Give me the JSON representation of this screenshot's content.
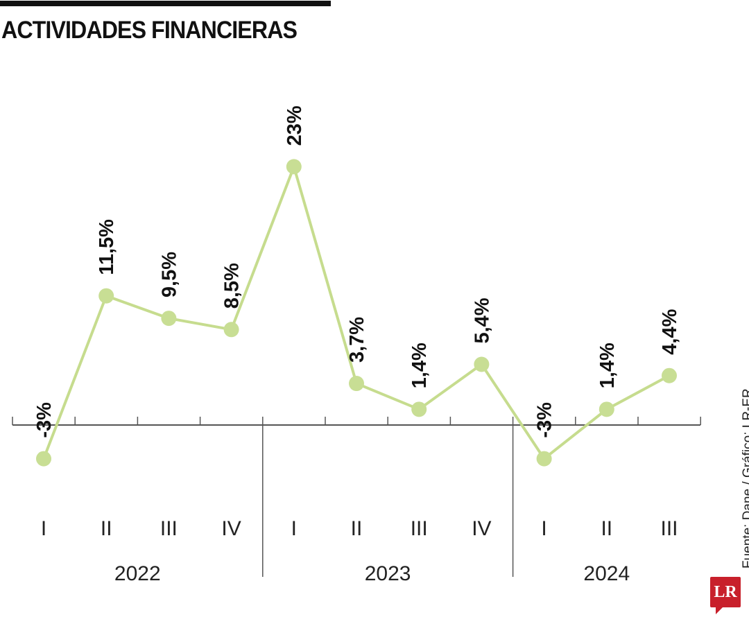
{
  "title": "ACTIVIDADES FINANCIERAS",
  "source": "Fuente: Dane / Gráfico: LR-ER",
  "logo_text": "LR",
  "chart_data": {
    "type": "line",
    "title": "ACTIVIDADES FINANCIERAS",
    "categories": [
      "I",
      "II",
      "III",
      "IV",
      "I",
      "II",
      "III",
      "IV",
      "I",
      "II",
      "III"
    ],
    "groups": [
      {
        "label": "2022",
        "count": 4
      },
      {
        "label": "2023",
        "count": 4
      },
      {
        "label": "2024",
        "count": 3
      }
    ],
    "values": [
      -3,
      11.5,
      9.5,
      8.5,
      23,
      3.7,
      1.4,
      5.4,
      -3,
      1.4,
      4.4
    ],
    "data_labels": [
      "-3%",
      "11,5%",
      "9,5%",
      "8,5%",
      "23%",
      "3,7%",
      "1,4%",
      "5,4%",
      "-3%",
      "1,4%",
      "4,4%"
    ],
    "xlabel": "",
    "ylabel": "",
    "grid": false,
    "colors": {
      "line": "#c6dc8e",
      "marker": "#c8de94",
      "axis": "#555555",
      "logo": "#c8202b"
    }
  }
}
